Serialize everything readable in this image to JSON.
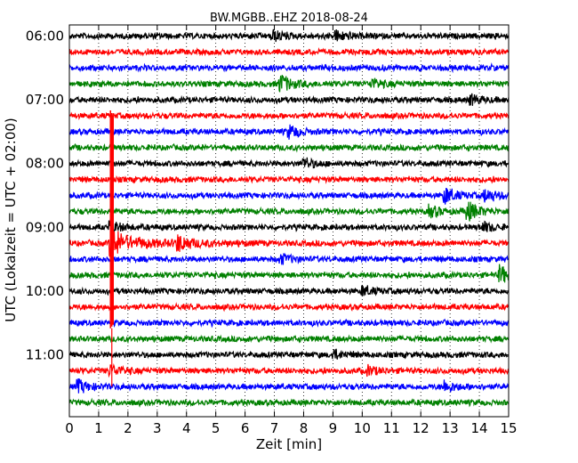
{
  "chart_data": {
    "type": "line",
    "title": "BW.MGBB..EHZ 2018-08-24",
    "xlabel": "Zeit  [min]",
    "ylabel": "UTC (Lokalzeit = UTC + 02:00)",
    "xlim": [
      0,
      15
    ],
    "x_ticks": [
      "0",
      "1",
      "2",
      "3",
      "4",
      "5",
      "6",
      "7",
      "8",
      "9",
      "10",
      "11",
      "12",
      "13",
      "14",
      "15"
    ],
    "y_tick_labels": [
      "06:00",
      "07:00",
      "08:00",
      "09:00",
      "10:00",
      "11:00"
    ],
    "grid": "vertical dotted lines at each minute",
    "trace_interval_minutes": 15,
    "trace_colors": [
      "#000000",
      "#ff0000",
      "#0000ff",
      "#008000"
    ],
    "traces": [
      {
        "start": "06:00",
        "events": [
          {
            "t": 6.9,
            "amp": 1.6
          },
          {
            "t": 9.1,
            "amp": 1.4
          }
        ]
      },
      {
        "start": "06:15",
        "events": []
      },
      {
        "start": "06:30",
        "events": []
      },
      {
        "start": "06:45",
        "events": [
          {
            "t": 7.2,
            "amp": 2.6
          },
          {
            "t": 10.3,
            "amp": 1.3
          }
        ]
      },
      {
        "start": "07:00",
        "events": [
          {
            "t": 13.7,
            "amp": 1.3
          }
        ]
      },
      {
        "start": "07:15",
        "events": []
      },
      {
        "start": "07:30",
        "events": [
          {
            "t": 7.5,
            "amp": 1.7
          }
        ]
      },
      {
        "start": "07:45",
        "events": []
      },
      {
        "start": "08:00",
        "events": [
          {
            "t": 8.0,
            "amp": 1.3
          }
        ]
      },
      {
        "start": "08:15",
        "events": []
      },
      {
        "start": "08:30",
        "events": [
          {
            "t": 12.8,
            "amp": 2.2
          },
          {
            "t": 14.2,
            "amp": 1.6
          }
        ]
      },
      {
        "start": "08:45",
        "events": [
          {
            "t": 12.3,
            "amp": 1.5
          },
          {
            "t": 13.6,
            "amp": 2.6
          }
        ]
      },
      {
        "start": "09:00",
        "events": [
          {
            "t": 1.4,
            "amp": 1.6
          },
          {
            "t": 14.1,
            "amp": 1.3
          }
        ]
      },
      {
        "start": "09:15",
        "events": [
          {
            "t": 1.4,
            "amp": 3.5
          },
          {
            "t": 3.7,
            "amp": 2.0
          }
        ]
      },
      {
        "start": "09:30",
        "events": [
          {
            "t": 7.2,
            "amp": 1.3
          }
        ]
      },
      {
        "start": "09:45",
        "events": [
          {
            "t": 14.7,
            "amp": 2.4
          }
        ]
      },
      {
        "start": "10:00",
        "events": [
          {
            "t": 10.0,
            "amp": 1.2
          }
        ]
      },
      {
        "start": "10:15",
        "events": []
      },
      {
        "start": "10:30",
        "events": []
      },
      {
        "start": "10:45",
        "events": []
      },
      {
        "start": "11:00",
        "events": [
          {
            "t": 9.0,
            "amp": 1.2
          }
        ]
      },
      {
        "start": "11:15",
        "events": [
          {
            "t": 1.4,
            "amp": 1.4
          },
          {
            "t": 10.2,
            "amp": 1.2
          }
        ]
      },
      {
        "start": "11:30",
        "events": [
          {
            "t": 0.3,
            "amp": 1.6
          },
          {
            "t": 12.8,
            "amp": 1.6
          }
        ]
      },
      {
        "start": "11:45",
        "events": []
      }
    ],
    "big_event": {
      "t": 1.45,
      "rows": [
        5,
        18
      ],
      "color": "#ff0000"
    }
  }
}
